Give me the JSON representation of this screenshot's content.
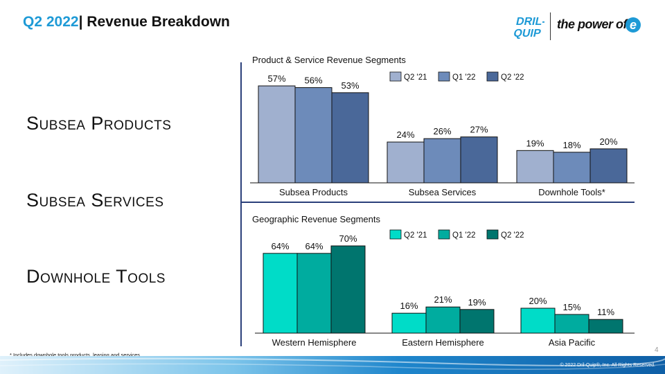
{
  "header": {
    "quarter": "Q2 2022",
    "title": "| Revenue Breakdown"
  },
  "logo": {
    "brand_top": "DRIL-",
    "brand_bottom": "QUIP",
    "tagline": "the power of",
    "brand_mark": "e",
    "icon": "dril-quip-logo-icon"
  },
  "segments": [
    "Subsea Products",
    "Subsea Services",
    "Downhole Tools"
  ],
  "chart_data": [
    {
      "type": "bar",
      "title": "Product & Service Revenue Segments",
      "categories": [
        "Subsea Products",
        "Subsea Services",
        "Downhole Tools*"
      ],
      "series": [
        {
          "name": "Q2 '21",
          "color": "#a0b0cf",
          "values": [
            57,
            24,
            19
          ],
          "labels": [
            "57%",
            "24%",
            "19%"
          ]
        },
        {
          "name": "Q1 '22",
          "color": "#6d8bba",
          "values": [
            56,
            26,
            18
          ],
          "labels": [
            "56%",
            "26%",
            "18%"
          ]
        },
        {
          "name": "Q2 '22",
          "color": "#4a6899",
          "values": [
            53,
            27,
            20
          ],
          "labels": [
            "53%",
            "27%",
            "20%"
          ]
        }
      ],
      "ylim": [
        0,
        70
      ],
      "legend": "top-right",
      "grid": false
    },
    {
      "type": "bar",
      "title": "Geographic Revenue Segments",
      "categories": [
        "Western Hemisphere",
        "Eastern Hemisphere",
        "Asia Pacific"
      ],
      "series": [
        {
          "name": "Q2 '21",
          "color": "#00dcc8",
          "values": [
            64,
            16,
            20
          ],
          "labels": [
            "64%",
            "16%",
            "20%"
          ]
        },
        {
          "name": "Q1 '22",
          "color": "#00ac9f",
          "values": [
            64,
            21,
            15
          ],
          "labels": [
            "64%",
            "21%",
            "15%"
          ]
        },
        {
          "name": "Q2 '22",
          "color": "#00756e",
          "values": [
            70,
            19,
            11
          ],
          "labels": [
            "70%",
            "19%",
            "11%"
          ]
        }
      ],
      "ylim": [
        0,
        85
      ],
      "legend": "top-right",
      "grid": false
    }
  ],
  "footnote": "* Includes downhole tools products, leasing and services",
  "page_number": "4",
  "copyright": "© 2022 Dril-Quip®, Inc. All Rights Reserved.",
  "colors": {
    "accent_blue": "#1e9ad6",
    "divider_navy": "#2a3f7a",
    "footer_band": "#1a7cc4"
  }
}
